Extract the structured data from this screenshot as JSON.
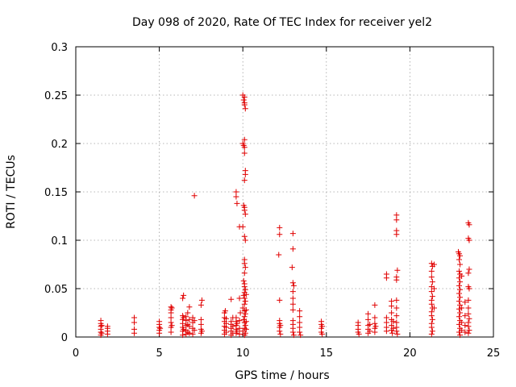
{
  "chart_data": {
    "type": "scatter",
    "title": "Day 098 of 2020, Rate Of TEC Index for receiver yel2",
    "xlabel": "GPS time / hours",
    "ylabel": "ROTI / TECUs",
    "xlim": [
      0,
      25
    ],
    "ylim": [
      0,
      0.3
    ],
    "xticks": [
      0,
      5,
      10,
      15,
      20,
      25
    ],
    "xtick_labels": [
      "0",
      "5",
      "10",
      "15",
      "20",
      "25"
    ],
    "yticks": [
      0,
      0.05,
      0.1,
      0.15,
      0.2,
      0.25,
      0.3
    ],
    "ytick_labels": [
      "0",
      "0.05",
      "0.1",
      "0.15",
      "0.2",
      "0.25",
      "0.3"
    ],
    "grid": true,
    "marker": "plus",
    "marker_color": "#e00000",
    "series": [
      {
        "name": "ROTI",
        "points": [
          [
            1.5,
            0.002
          ],
          [
            1.5,
            0.005
          ],
          [
            1.5,
            0.008
          ],
          [
            1.5,
            0.011
          ],
          [
            1.5,
            0.014
          ],
          [
            1.5,
            0.017
          ],
          [
            1.55,
            0.004
          ],
          [
            1.55,
            0.012
          ],
          [
            1.9,
            0.003
          ],
          [
            1.9,
            0.006
          ],
          [
            1.9,
            0.009
          ],
          [
            1.9,
            0.011
          ],
          [
            3.5,
            0.004
          ],
          [
            3.5,
            0.008
          ],
          [
            3.5,
            0.015
          ],
          [
            3.5,
            0.02
          ],
          [
            5.0,
            0.004
          ],
          [
            5.0,
            0.007
          ],
          [
            5.0,
            0.01
          ],
          [
            5.0,
            0.013
          ],
          [
            5.0,
            0.016
          ],
          [
            5.05,
            0.009
          ],
          [
            5.7,
            0.005
          ],
          [
            5.7,
            0.01
          ],
          [
            5.7,
            0.015
          ],
          [
            5.7,
            0.02
          ],
          [
            5.7,
            0.025
          ],
          [
            5.7,
            0.028
          ],
          [
            5.7,
            0.031
          ],
          [
            5.75,
            0.012
          ],
          [
            5.75,
            0.03
          ],
          [
            6.4,
            0.002
          ],
          [
            6.4,
            0.006
          ],
          [
            6.4,
            0.01
          ],
          [
            6.4,
            0.014
          ],
          [
            6.4,
            0.018
          ],
          [
            6.4,
            0.022
          ],
          [
            6.4,
            0.04
          ],
          [
            6.45,
            0.043
          ],
          [
            6.45,
            0.008
          ],
          [
            6.45,
            0.02
          ],
          [
            6.6,
            0.003
          ],
          [
            6.6,
            0.007
          ],
          [
            6.6,
            0.012
          ],
          [
            6.6,
            0.017
          ],
          [
            6.6,
            0.021
          ],
          [
            6.7,
            0.005
          ],
          [
            6.7,
            0.013
          ],
          [
            6.7,
            0.025
          ],
          [
            6.8,
            0.004
          ],
          [
            6.8,
            0.011
          ],
          [
            6.8,
            0.018
          ],
          [
            6.8,
            0.031
          ],
          [
            7.0,
            0.003
          ],
          [
            7.0,
            0.009
          ],
          [
            7.0,
            0.015
          ],
          [
            7.0,
            0.02
          ],
          [
            7.1,
            0.146
          ],
          [
            7.1,
            0.007
          ],
          [
            7.1,
            0.017
          ],
          [
            7.5,
            0.004
          ],
          [
            7.5,
            0.008
          ],
          [
            7.5,
            0.013
          ],
          [
            7.5,
            0.018
          ],
          [
            7.5,
            0.033
          ],
          [
            7.55,
            0.038
          ],
          [
            7.55,
            0.006
          ],
          [
            8.9,
            0.003
          ],
          [
            8.9,
            0.007
          ],
          [
            8.9,
            0.011
          ],
          [
            8.9,
            0.016
          ],
          [
            8.9,
            0.02
          ],
          [
            8.9,
            0.025
          ],
          [
            8.95,
            0.027
          ],
          [
            9.0,
            0.005
          ],
          [
            9.0,
            0.01
          ],
          [
            9.0,
            0.014
          ],
          [
            9.0,
            0.019
          ],
          [
            9.3,
            0.002
          ],
          [
            9.3,
            0.006
          ],
          [
            9.3,
            0.009
          ],
          [
            9.3,
            0.013
          ],
          [
            9.3,
            0.016
          ],
          [
            9.3,
            0.039
          ],
          [
            9.4,
            0.004
          ],
          [
            9.4,
            0.011
          ],
          [
            9.4,
            0.02
          ],
          [
            9.6,
            0.15
          ],
          [
            9.6,
            0.145
          ],
          [
            9.65,
            0.138
          ],
          [
            9.6,
            0.004
          ],
          [
            9.6,
            0.008
          ],
          [
            9.6,
            0.012
          ],
          [
            9.6,
            0.016
          ],
          [
            9.6,
            0.02
          ],
          [
            9.65,
            0.006
          ],
          [
            9.65,
            0.014
          ],
          [
            9.8,
            0.114
          ],
          [
            9.8,
            0.04
          ],
          [
            9.8,
            0.003
          ],
          [
            9.8,
            0.009
          ],
          [
            9.8,
            0.017
          ],
          [
            9.85,
            0.025
          ],
          [
            10.0,
            0.25
          ],
          [
            10.05,
            0.245
          ],
          [
            10.1,
            0.248
          ],
          [
            10.1,
            0.242
          ],
          [
            10.1,
            0.24
          ],
          [
            10.15,
            0.236
          ],
          [
            10.0,
            0.2
          ],
          [
            10.1,
            0.204
          ],
          [
            10.1,
            0.196
          ],
          [
            10.1,
            0.19
          ],
          [
            10.05,
            0.198
          ],
          [
            10.15,
            0.172
          ],
          [
            10.15,
            0.168
          ],
          [
            10.1,
            0.162
          ],
          [
            10.05,
            0.136
          ],
          [
            10.1,
            0.134
          ],
          [
            10.1,
            0.131
          ],
          [
            10.15,
            0.127
          ],
          [
            10.0,
            0.114
          ],
          [
            10.1,
            0.104
          ],
          [
            10.15,
            0.1
          ],
          [
            10.1,
            0.08
          ],
          [
            10.1,
            0.076
          ],
          [
            10.15,
            0.072
          ],
          [
            10.1,
            0.066
          ],
          [
            10.05,
            0.058
          ],
          [
            10.1,
            0.055
          ],
          [
            10.1,
            0.052
          ],
          [
            10.15,
            0.049
          ],
          [
            10.1,
            0.046
          ],
          [
            10.05,
            0.043
          ],
          [
            10.1,
            0.04
          ],
          [
            10.15,
            0.037
          ],
          [
            10.1,
            0.034
          ],
          [
            10.0,
            0.03
          ],
          [
            10.1,
            0.027
          ],
          [
            10.15,
            0.024
          ],
          [
            10.1,
            0.021
          ],
          [
            10.05,
            0.018
          ],
          [
            10.1,
            0.015
          ],
          [
            10.15,
            0.012
          ],
          [
            10.1,
            0.009
          ],
          [
            10.0,
            0.006
          ],
          [
            10.15,
            0.004
          ],
          [
            10.1,
            0.002
          ],
          [
            10.2,
            0.008
          ],
          [
            10.2,
            0.016
          ],
          [
            10.2,
            0.028
          ],
          [
            10.2,
            0.044
          ],
          [
            12.2,
            0.113
          ],
          [
            12.2,
            0.106
          ],
          [
            12.15,
            0.085
          ],
          [
            12.2,
            0.038
          ],
          [
            12.2,
            0.017
          ],
          [
            12.2,
            0.014
          ],
          [
            12.2,
            0.01
          ],
          [
            12.2,
            0.006
          ],
          [
            12.25,
            0.003
          ],
          [
            12.25,
            0.012
          ],
          [
            13.0,
            0.107
          ],
          [
            13.0,
            0.091
          ],
          [
            12.95,
            0.072
          ],
          [
            13.0,
            0.056
          ],
          [
            13.05,
            0.053
          ],
          [
            13.0,
            0.047
          ],
          [
            13.0,
            0.04
          ],
          [
            13.0,
            0.034
          ],
          [
            13.0,
            0.028
          ],
          [
            13.0,
            0.017
          ],
          [
            13.0,
            0.013
          ],
          [
            13.0,
            0.009
          ],
          [
            13.0,
            0.005
          ],
          [
            13.05,
            0.002
          ],
          [
            13.4,
            0.027
          ],
          [
            13.4,
            0.021
          ],
          [
            13.4,
            0.015
          ],
          [
            13.4,
            0.01
          ],
          [
            13.4,
            0.005
          ],
          [
            13.45,
            0.002
          ],
          [
            14.7,
            0.016
          ],
          [
            14.7,
            0.013
          ],
          [
            14.7,
            0.009
          ],
          [
            14.7,
            0.005
          ],
          [
            14.75,
            0.003
          ],
          [
            14.75,
            0.011
          ],
          [
            16.9,
            0.015
          ],
          [
            16.9,
            0.012
          ],
          [
            16.9,
            0.008
          ],
          [
            16.9,
            0.005
          ],
          [
            16.95,
            0.003
          ],
          [
            17.5,
            0.024
          ],
          [
            17.5,
            0.018
          ],
          [
            17.5,
            0.012
          ],
          [
            17.5,
            0.008
          ],
          [
            17.5,
            0.004
          ],
          [
            17.6,
            0.006
          ],
          [
            17.6,
            0.013
          ],
          [
            17.9,
            0.033
          ],
          [
            17.9,
            0.02
          ],
          [
            17.9,
            0.014
          ],
          [
            17.9,
            0.009
          ],
          [
            17.9,
            0.005
          ],
          [
            17.95,
            0.011
          ],
          [
            18.6,
            0.065
          ],
          [
            18.6,
            0.061
          ],
          [
            18.6,
            0.02
          ],
          [
            18.6,
            0.015
          ],
          [
            18.6,
            0.01
          ],
          [
            18.6,
            0.006
          ],
          [
            18.9,
            0.037
          ],
          [
            18.9,
            0.032
          ],
          [
            18.9,
            0.025
          ],
          [
            18.9,
            0.018
          ],
          [
            18.9,
            0.012
          ],
          [
            18.9,
            0.007
          ],
          [
            18.95,
            0.004
          ],
          [
            19.0,
            0.009
          ],
          [
            19.0,
            0.016
          ],
          [
            19.2,
            0.126
          ],
          [
            19.2,
            0.121
          ],
          [
            19.2,
            0.11
          ],
          [
            19.2,
            0.106
          ],
          [
            19.25,
            0.069
          ],
          [
            19.2,
            0.062
          ],
          [
            19.2,
            0.059
          ],
          [
            19.2,
            0.038
          ],
          [
            19.2,
            0.03
          ],
          [
            19.2,
            0.022
          ],
          [
            19.2,
            0.015
          ],
          [
            19.2,
            0.01
          ],
          [
            19.2,
            0.006
          ],
          [
            19.25,
            0.003
          ],
          [
            21.3,
            0.076
          ],
          [
            21.35,
            0.073
          ],
          [
            21.3,
            0.068
          ],
          [
            21.3,
            0.062
          ],
          [
            21.35,
            0.057
          ],
          [
            21.3,
            0.052
          ],
          [
            21.3,
            0.047
          ],
          [
            21.35,
            0.042
          ],
          [
            21.3,
            0.038
          ],
          [
            21.3,
            0.034
          ],
          [
            21.35,
            0.03
          ],
          [
            21.3,
            0.026
          ],
          [
            21.3,
            0.022
          ],
          [
            21.35,
            0.018
          ],
          [
            21.3,
            0.014
          ],
          [
            21.3,
            0.01
          ],
          [
            21.35,
            0.006
          ],
          [
            21.3,
            0.003
          ],
          [
            21.45,
            0.075
          ],
          [
            21.45,
            0.05
          ],
          [
            21.45,
            0.03
          ],
          [
            22.9,
            0.088
          ],
          [
            22.95,
            0.086
          ],
          [
            23.0,
            0.084
          ],
          [
            22.95,
            0.08
          ],
          [
            23.0,
            0.075
          ],
          [
            22.95,
            0.068
          ],
          [
            23.0,
            0.065
          ],
          [
            22.95,
            0.061
          ],
          [
            23.0,
            0.057
          ],
          [
            22.95,
            0.053
          ],
          [
            23.0,
            0.049
          ],
          [
            22.95,
            0.045
          ],
          [
            23.0,
            0.041
          ],
          [
            22.95,
            0.037
          ],
          [
            23.0,
            0.033
          ],
          [
            22.95,
            0.029
          ],
          [
            23.0,
            0.025
          ],
          [
            22.95,
            0.021
          ],
          [
            23.0,
            0.017
          ],
          [
            22.95,
            0.013
          ],
          [
            23.0,
            0.009
          ],
          [
            22.95,
            0.005
          ],
          [
            23.0,
            0.002
          ],
          [
            23.1,
            0.063
          ],
          [
            23.1,
            0.03
          ],
          [
            23.1,
            0.015
          ],
          [
            23.1,
            0.007
          ],
          [
            23.5,
            0.118
          ],
          [
            23.55,
            0.116
          ],
          [
            23.5,
            0.102
          ],
          [
            23.55,
            0.1
          ],
          [
            23.55,
            0.07
          ],
          [
            23.5,
            0.066
          ],
          [
            23.5,
            0.052
          ],
          [
            23.55,
            0.05
          ],
          [
            23.5,
            0.038
          ],
          [
            23.5,
            0.03
          ],
          [
            23.5,
            0.024
          ],
          [
            23.55,
            0.019
          ],
          [
            23.5,
            0.015
          ],
          [
            23.5,
            0.011
          ],
          [
            23.55,
            0.007
          ],
          [
            23.5,
            0.004
          ],
          [
            23.3,
            0.036
          ],
          [
            23.3,
            0.022
          ],
          [
            23.3,
            0.012
          ],
          [
            23.3,
            0.005
          ]
        ]
      }
    ]
  }
}
